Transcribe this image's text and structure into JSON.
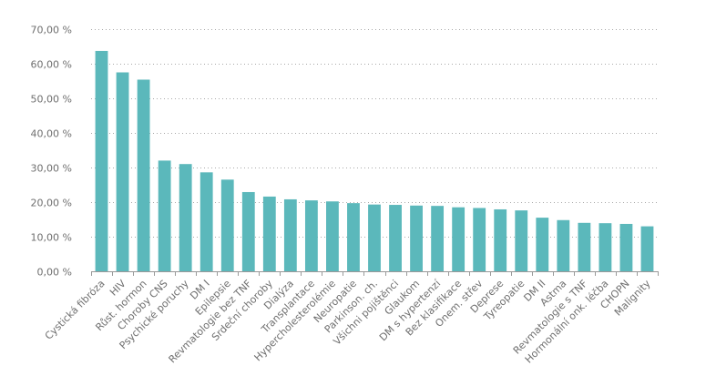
{
  "chart_data": {
    "type": "bar",
    "categories": [
      "Cystická fibróza",
      "HIV",
      "Růst. hormon",
      "Choroby CNS",
      "Psychické poruchy",
      "DM I",
      "Epilepsie",
      "Revmatologie bez TNF",
      "Srdeční choroby",
      "Dialýza",
      "Transplantace",
      "Hypercholesterolémie",
      "Neuropatie",
      "Parkinson. ch.",
      "Všichni pojištěnci",
      "Glaukom",
      "DM s hypertenzí",
      "Bez klasifikace",
      "Onem. střev",
      "Deprese",
      "Tyreopatie",
      "DM II",
      "Astma",
      "Revmatologie s TNF",
      "Hormonální onk. léčba",
      "CHOPN",
      "Malignity"
    ],
    "values": [
      63.7,
      57.5,
      55.4,
      32.0,
      31.0,
      28.6,
      26.5,
      22.9,
      21.6,
      20.8,
      20.5,
      20.2,
      19.7,
      19.3,
      19.2,
      19.0,
      18.9,
      18.5,
      18.3,
      17.9,
      17.6,
      15.5,
      14.8,
      14.0,
      13.9,
      13.7,
      13.0
    ],
    "yticks": [
      "0,00 %",
      "10,00 %",
      "20,00 %",
      "30,00 %",
      "40,00 %",
      "50,00 %",
      "60,00 %",
      "70,00 %"
    ],
    "ylim": [
      0,
      70
    ],
    "ytick_step": 10,
    "grid": true,
    "bar_color": "#5bb8bb",
    "title": "",
    "xlabel": "",
    "ylabel": ""
  }
}
